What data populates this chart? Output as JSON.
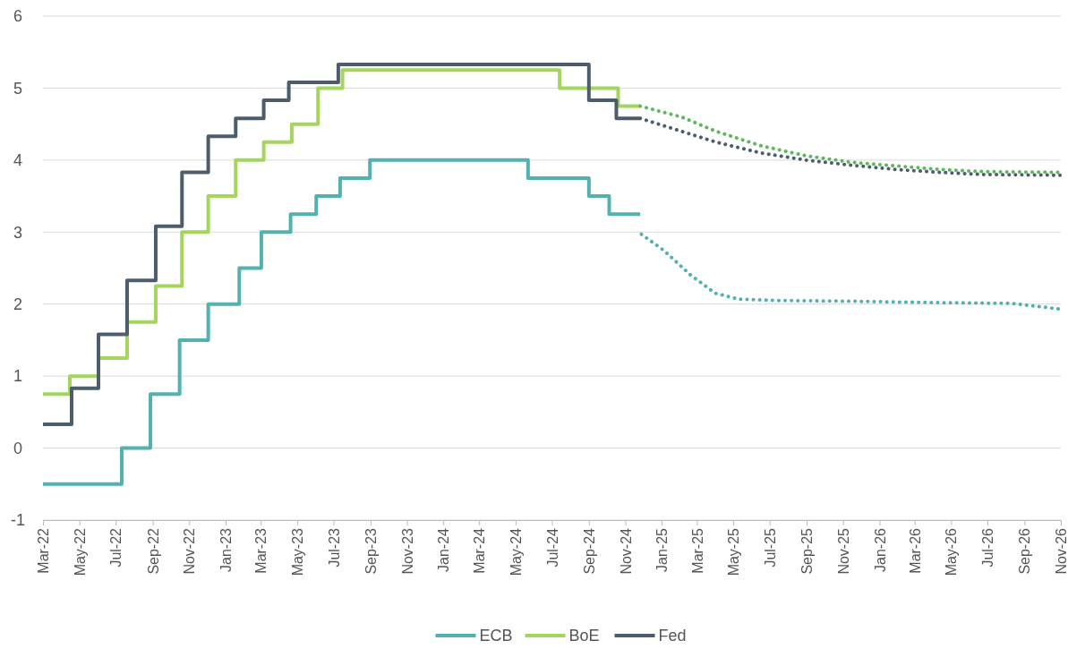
{
  "chart_data": {
    "type": "step",
    "grid": "y",
    "legend": "bottom",
    "ylim": [
      -1,
      6
    ],
    "yticks": [
      -1,
      0,
      1,
      2,
      3,
      4,
      5,
      6
    ],
    "xlim": [
      "2022-03-01",
      "2026-11-01"
    ],
    "xticks": [
      {
        "value": "2022-03",
        "label": "Mar-22"
      },
      {
        "value": "2022-05",
        "label": "May-22"
      },
      {
        "value": "2022-07",
        "label": "Jul-22"
      },
      {
        "value": "2022-09",
        "label": "Sep-22"
      },
      {
        "value": "2022-11",
        "label": "Nov-22"
      },
      {
        "value": "2023-01",
        "label": "Jan-23"
      },
      {
        "value": "2023-03",
        "label": "Mar-23"
      },
      {
        "value": "2023-05",
        "label": "May-23"
      },
      {
        "value": "2023-07",
        "label": "Jul-23"
      },
      {
        "value": "2023-09",
        "label": "Sep-23"
      },
      {
        "value": "2023-11",
        "label": "Nov-23"
      },
      {
        "value": "2024-01",
        "label": "Jan-24"
      },
      {
        "value": "2024-03",
        "label": "Mar-24"
      },
      {
        "value": "2024-05",
        "label": "May-24"
      },
      {
        "value": "2024-07",
        "label": "Jul-24"
      },
      {
        "value": "2024-09",
        "label": "Sep-24"
      },
      {
        "value": "2024-11",
        "label": "Nov-24"
      },
      {
        "value": "2025-01",
        "label": "Jan-25"
      },
      {
        "value": "2025-03",
        "label": "Mar-25"
      },
      {
        "value": "2025-05",
        "label": "May-25"
      },
      {
        "value": "2025-07",
        "label": "Jul-25"
      },
      {
        "value": "2025-09",
        "label": "Sep-25"
      },
      {
        "value": "2025-11",
        "label": "Nov-25"
      },
      {
        "value": "2026-01",
        "label": "Jan-26"
      },
      {
        "value": "2026-03",
        "label": "Mar-26"
      },
      {
        "value": "2026-05",
        "label": "May-26"
      },
      {
        "value": "2026-07",
        "label": "Jul-26"
      },
      {
        "value": "2026-09",
        "label": "Sep-26"
      },
      {
        "value": "2026-11",
        "label": "Nov-26"
      }
    ],
    "series": [
      {
        "name": "ECB",
        "color": "#52b1b1",
        "line_style": "solid",
        "x": [
          "2022-03-01",
          "2022-07-11",
          "2022-08-28",
          "2022-10-16",
          "2022-12-03",
          "2023-01-24",
          "2023-03-02",
          "2023-04-20",
          "2023-06-02",
          "2023-07-12",
          "2023-08-31",
          "2024-05-22",
          "2024-09-01",
          "2024-10-05",
          "2024-11-26"
        ],
        "values": [
          -0.5,
          0,
          0.75,
          1.5,
          2,
          2.5,
          3,
          3.25,
          3.5,
          3.75,
          4,
          3.75,
          3.5,
          3.25,
          3.25
        ]
      },
      {
        "name": "BoE",
        "color": "#a4d65e",
        "line_style": "solid",
        "x": [
          "2022-03-01",
          "2022-04-15",
          "2022-06-02",
          "2022-07-20",
          "2022-09-06",
          "2022-10-20",
          "2022-12-03",
          "2023-01-18",
          "2023-03-06",
          "2023-04-22",
          "2023-06-05",
          "2023-07-16",
          "2024-07-14",
          "2024-10-20",
          "2024-11-26"
        ],
        "values": [
          0.75,
          1,
          1.25,
          1.75,
          2.25,
          3,
          3.5,
          4,
          4.25,
          4.5,
          5,
          5.25,
          5,
          4.75,
          4.75
        ]
      },
      {
        "name": "Fed",
        "color": "#4e5d6c",
        "line_style": "solid",
        "x": [
          "2022-03-01",
          "2022-04-18",
          "2022-06-02",
          "2022-07-20",
          "2022-09-06",
          "2022-10-20",
          "2022-12-03",
          "2023-01-18",
          "2023-03-06",
          "2023-04-17",
          "2023-07-09",
          "2024-09-01",
          "2024-10-17",
          "2024-11-26"
        ],
        "values": [
          0.33,
          0.83,
          1.58,
          2.33,
          3.08,
          3.83,
          4.33,
          4.58,
          4.83,
          5.08,
          5.33,
          4.83,
          4.58,
          4.58
        ]
      },
      {
        "type": "line",
        "color": "#52b1b1",
        "line_style": "dotted",
        "x": [
          "2024-11-28",
          "2025-01-04",
          "2025-02-19",
          "2025-04-01",
          "2025-05-10",
          "2025-07-16",
          "2025-11-13",
          "2026-04-13",
          "2026-08-10",
          "2026-11-01"
        ],
        "values": [
          2.97,
          2.75,
          2.4,
          2.15,
          2.07,
          2.05,
          2.04,
          2.02,
          2.01,
          1.93
        ]
      },
      {
        "type": "line",
        "color": "#5cb85c",
        "line_style": "dotted",
        "x": [
          "2024-11-26",
          "2025-02-03",
          "2025-04-02",
          "2025-06-16",
          "2025-08-31",
          "2025-11-14",
          "2026-01-28",
          "2026-04-12",
          "2026-06-25",
          "2026-11-01"
        ],
        "values": [
          4.75,
          4.6,
          4.4,
          4.2,
          4.06,
          3.97,
          3.92,
          3.87,
          3.84,
          3.83
        ]
      },
      {
        "type": "line",
        "color": "#4e5d6c",
        "line_style": "dotted",
        "x": [
          "2024-11-26",
          "2025-02-03",
          "2025-04-02",
          "2025-06-16",
          "2025-08-31",
          "2025-11-14",
          "2026-01-28",
          "2026-04-12",
          "2026-06-25",
          "2026-11-01"
        ],
        "values": [
          4.58,
          4.4,
          4.25,
          4.1,
          4.0,
          3.93,
          3.87,
          3.83,
          3.8,
          3.79
        ]
      }
    ]
  }
}
